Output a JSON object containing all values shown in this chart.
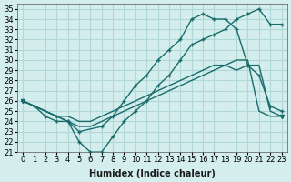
{
  "xlabel": "Humidex (Indice chaleur)",
  "ylabel": "",
  "bg_color": "#d4eeee",
  "grid_color": "#b0d8d8",
  "line_color": "#1a6b6b",
  "x_ticks": [
    0,
    1,
    2,
    3,
    4,
    5,
    6,
    7,
    8,
    9,
    10,
    11,
    12,
    13,
    14,
    15,
    16,
    17,
    18,
    19,
    20,
    21,
    22,
    23
  ],
  "y_ticks": [
    21,
    22,
    23,
    24,
    25,
    26,
    27,
    28,
    29,
    30,
    31,
    32,
    33,
    34,
    35
  ],
  "ylim": [
    21,
    35.5
  ],
  "xlim": [
    -0.5,
    23.5
  ],
  "line1": [
    26.0,
    25.5,
    24.5,
    24.0,
    24.0,
    22.0,
    21.0,
    21.0,
    22.5,
    24.0,
    25.0,
    26.0,
    27.5,
    28.5,
    30.0,
    31.5,
    32.0,
    32.5,
    33.0,
    34.0,
    34.5,
    35.0,
    33.5,
    33.5
  ],
  "line2_x": [
    0,
    3,
    4,
    5,
    7,
    8,
    9,
    10,
    11,
    12,
    13,
    14,
    15,
    16,
    17,
    18,
    19,
    20,
    21,
    22,
    23
  ],
  "line2_y": [
    26.0,
    24.5,
    24.0,
    23.0,
    23.5,
    24.5,
    26.0,
    27.5,
    28.5,
    30.0,
    31.0,
    32.0,
    34.0,
    34.5,
    34.0,
    34.0,
    33.0,
    29.5,
    28.5,
    25.5,
    25.0
  ],
  "line3": [
    26.0,
    25.5,
    25.0,
    24.5,
    24.5,
    24.0,
    24.0,
    24.5,
    25.0,
    25.5,
    26.0,
    26.5,
    27.0,
    27.5,
    28.0,
    28.5,
    29.0,
    29.5,
    29.5,
    29.0,
    29.5,
    29.5,
    25.0,
    24.5
  ],
  "line4": [
    26.0,
    25.5,
    25.0,
    24.5,
    24.0,
    23.5,
    23.5,
    24.0,
    24.5,
    25.0,
    25.5,
    26.0,
    26.5,
    27.0,
    27.5,
    28.0,
    28.5,
    29.0,
    29.5,
    30.0,
    30.0,
    25.0,
    24.5,
    24.5
  ]
}
